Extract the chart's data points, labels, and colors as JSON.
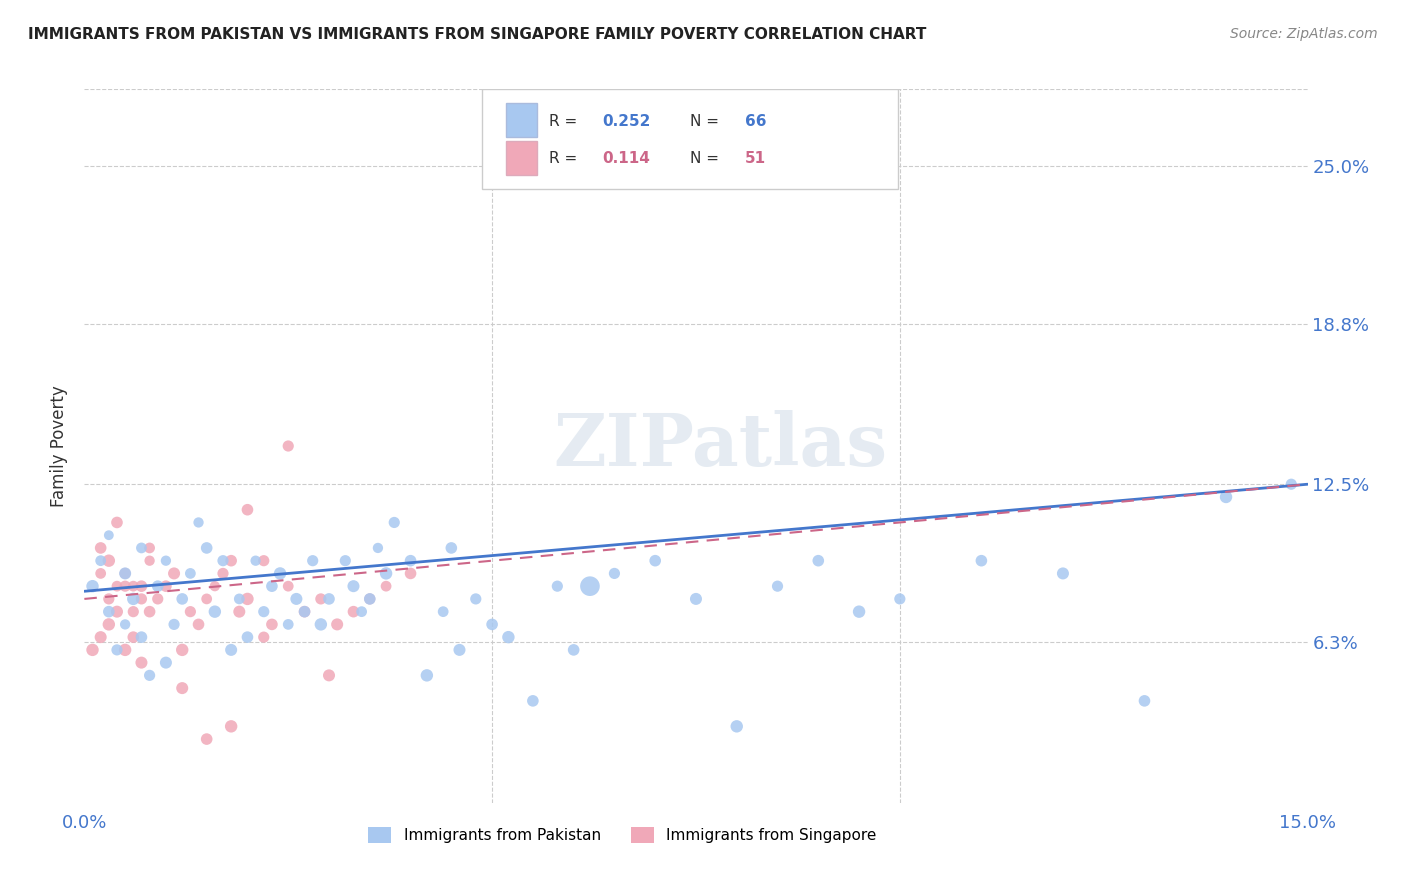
{
  "title": "IMMIGRANTS FROM PAKISTAN VS IMMIGRANTS FROM SINGAPORE FAMILY POVERTY CORRELATION CHART",
  "source": "Source: ZipAtlas.com",
  "xlabel": "",
  "ylabel": "Family Poverty",
  "xlim": [
    0.0,
    0.15
  ],
  "ylim": [
    0.0,
    0.28
  ],
  "xtick_labels": [
    "0.0%",
    "15.0%"
  ],
  "ytick_labels": [
    "6.3%",
    "12.5%",
    "18.8%",
    "25.0%"
  ],
  "ytick_values": [
    0.063,
    0.125,
    0.188,
    0.25
  ],
  "pakistan_R": 0.252,
  "pakistan_N": 66,
  "singapore_R": 0.114,
  "singapore_N": 51,
  "pakistan_color": "#a8c8f0",
  "singapore_color": "#f0a8b8",
  "pakistan_line_color": "#4477cc",
  "singapore_line_color": "#cc6688",
  "pakistan_x": [
    0.001,
    0.002,
    0.003,
    0.003,
    0.004,
    0.005,
    0.005,
    0.006,
    0.007,
    0.007,
    0.008,
    0.009,
    0.01,
    0.01,
    0.011,
    0.012,
    0.013,
    0.014,
    0.015,
    0.016,
    0.017,
    0.018,
    0.019,
    0.02,
    0.021,
    0.022,
    0.023,
    0.024,
    0.025,
    0.026,
    0.027,
    0.028,
    0.029,
    0.03,
    0.032,
    0.033,
    0.034,
    0.035,
    0.036,
    0.037,
    0.038,
    0.04,
    0.042,
    0.044,
    0.046,
    0.048,
    0.05,
    0.052,
    0.055,
    0.058,
    0.06,
    0.065,
    0.07,
    0.075,
    0.08,
    0.085,
    0.09,
    0.095,
    0.1,
    0.11,
    0.12,
    0.13,
    0.14,
    0.148,
    0.045,
    0.062
  ],
  "pakistan_y": [
    0.085,
    0.095,
    0.075,
    0.105,
    0.06,
    0.09,
    0.07,
    0.08,
    0.065,
    0.1,
    0.05,
    0.085,
    0.095,
    0.055,
    0.07,
    0.08,
    0.09,
    0.11,
    0.1,
    0.075,
    0.095,
    0.06,
    0.08,
    0.065,
    0.095,
    0.075,
    0.085,
    0.09,
    0.07,
    0.08,
    0.075,
    0.095,
    0.07,
    0.08,
    0.095,
    0.085,
    0.075,
    0.08,
    0.1,
    0.09,
    0.11,
    0.095,
    0.05,
    0.075,
    0.06,
    0.08,
    0.07,
    0.065,
    0.04,
    0.085,
    0.06,
    0.09,
    0.095,
    0.08,
    0.03,
    0.085,
    0.095,
    0.075,
    0.08,
    0.095,
    0.09,
    0.04,
    0.12,
    0.125,
    0.1,
    0.085
  ],
  "singapore_x": [
    0.001,
    0.002,
    0.002,
    0.003,
    0.003,
    0.004,
    0.004,
    0.005,
    0.005,
    0.006,
    0.006,
    0.007,
    0.007,
    0.008,
    0.008,
    0.009,
    0.01,
    0.011,
    0.012,
    0.013,
    0.014,
    0.015,
    0.016,
    0.017,
    0.018,
    0.019,
    0.02,
    0.022,
    0.023,
    0.025,
    0.027,
    0.029,
    0.031,
    0.033,
    0.035,
    0.037,
    0.04,
    0.025,
    0.02,
    0.03,
    0.018,
    0.022,
    0.015,
    0.012,
    0.008,
    0.006,
    0.004,
    0.003,
    0.002,
    0.005,
    0.007
  ],
  "singapore_y": [
    0.06,
    0.09,
    0.1,
    0.07,
    0.08,
    0.075,
    0.085,
    0.06,
    0.09,
    0.065,
    0.085,
    0.055,
    0.08,
    0.075,
    0.095,
    0.08,
    0.085,
    0.09,
    0.06,
    0.075,
    0.07,
    0.08,
    0.085,
    0.09,
    0.095,
    0.075,
    0.08,
    0.095,
    0.07,
    0.085,
    0.075,
    0.08,
    0.07,
    0.075,
    0.08,
    0.085,
    0.09,
    0.14,
    0.115,
    0.05,
    0.03,
    0.065,
    0.025,
    0.045,
    0.1,
    0.075,
    0.11,
    0.095,
    0.065,
    0.085,
    0.085
  ],
  "pakistan_sizes": [
    80,
    60,
    70,
    50,
    65,
    75,
    55,
    80,
    70,
    60,
    65,
    70,
    55,
    75,
    65,
    70,
    60,
    55,
    70,
    80,
    65,
    75,
    60,
    70,
    55,
    65,
    70,
    80,
    60,
    75,
    70,
    65,
    80,
    70,
    65,
    75,
    60,
    70,
    55,
    80,
    65,
    70,
    80,
    60,
    75,
    65,
    70,
    80,
    70,
    65,
    70,
    65,
    70,
    75,
    80,
    65,
    70,
    80,
    65,
    70,
    75,
    70,
    80,
    65,
    70,
    200
  ],
  "singapore_sizes": [
    80,
    60,
    70,
    80,
    65,
    75,
    60,
    80,
    65,
    70,
    60,
    75,
    65,
    70,
    55,
    65,
    70,
    75,
    80,
    65,
    70,
    60,
    55,
    65,
    70,
    75,
    80,
    65,
    70,
    60,
    70,
    65,
    75,
    70,
    65,
    60,
    70,
    65,
    70,
    75,
    80,
    65,
    70,
    75,
    60,
    65,
    70,
    80,
    75,
    65,
    70
  ],
  "watermark_text": "ZIPatlas",
  "grid_color": "#cccccc",
  "background_color": "#ffffff"
}
